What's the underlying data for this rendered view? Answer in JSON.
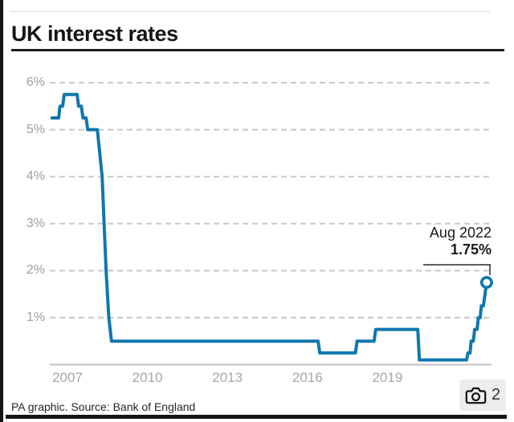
{
  "header": {
    "title": "UK interest rates"
  },
  "chart_data": {
    "type": "line",
    "title": "UK interest rates",
    "xlabel": "",
    "ylabel": "",
    "ylim": [
      0,
      6.4
    ],
    "xlim": [
      2006.3,
      2023.1
    ],
    "grid": "horizontal-dashed",
    "legend": "none",
    "line_color": "#1177ae",
    "grid_color": "#c8c8c8",
    "axis_color": "#c2c2c2",
    "tick_color": "#9e9e9e",
    "y_ticks": [
      {
        "label": "6%",
        "value": 6
      },
      {
        "label": "5%",
        "value": 5
      },
      {
        "label": "4%",
        "value": 4
      },
      {
        "label": "3%",
        "value": 3
      },
      {
        "label": "2%",
        "value": 2
      },
      {
        "label": "1%",
        "value": 1
      }
    ],
    "x_ticks": [
      {
        "label": "2007",
        "value": 2007
      },
      {
        "label": "2010",
        "value": 2010
      },
      {
        "label": "2013",
        "value": 2013
      },
      {
        "label": "2016",
        "value": 2016
      },
      {
        "label": "2019",
        "value": 2019
      }
    ],
    "series": [
      {
        "name": "UK interest rate (%)",
        "points": [
          [
            2006.42,
            5.25
          ],
          [
            2006.67,
            5.25
          ],
          [
            2006.72,
            5.5
          ],
          [
            2006.82,
            5.5
          ],
          [
            2006.88,
            5.75
          ],
          [
            2007.36,
            5.75
          ],
          [
            2007.42,
            5.5
          ],
          [
            2007.52,
            5.5
          ],
          [
            2007.58,
            5.25
          ],
          [
            2007.7,
            5.25
          ],
          [
            2007.76,
            5.0
          ],
          [
            2008.12,
            5.0
          ],
          [
            2008.3,
            4.0
          ],
          [
            2008.45,
            2.0
          ],
          [
            2008.55,
            1.0
          ],
          [
            2008.65,
            0.5
          ],
          [
            2016.4,
            0.5
          ],
          [
            2016.46,
            0.25
          ],
          [
            2017.8,
            0.25
          ],
          [
            2017.86,
            0.5
          ],
          [
            2018.5,
            0.5
          ],
          [
            2018.56,
            0.75
          ],
          [
            2020.14,
            0.75
          ],
          [
            2020.2,
            0.1
          ],
          [
            2021.97,
            0.1
          ],
          [
            2022.02,
            0.25
          ],
          [
            2022.1,
            0.25
          ],
          [
            2022.14,
            0.5
          ],
          [
            2022.22,
            0.5
          ],
          [
            2022.27,
            0.75
          ],
          [
            2022.36,
            0.75
          ],
          [
            2022.41,
            1.0
          ],
          [
            2022.48,
            1.0
          ],
          [
            2022.52,
            1.25
          ],
          [
            2022.6,
            1.25
          ],
          [
            2022.72,
            1.75
          ]
        ]
      }
    ],
    "end_marker": {
      "x": 2022.72,
      "y": 1.75
    },
    "annotation": {
      "date_label": "Aug 2022",
      "value_label": "1.75%"
    }
  },
  "footer": {
    "caption": "PA graphic. Source: Bank of England"
  },
  "photo_badge": {
    "count": "2",
    "icon": "camera-icon"
  }
}
